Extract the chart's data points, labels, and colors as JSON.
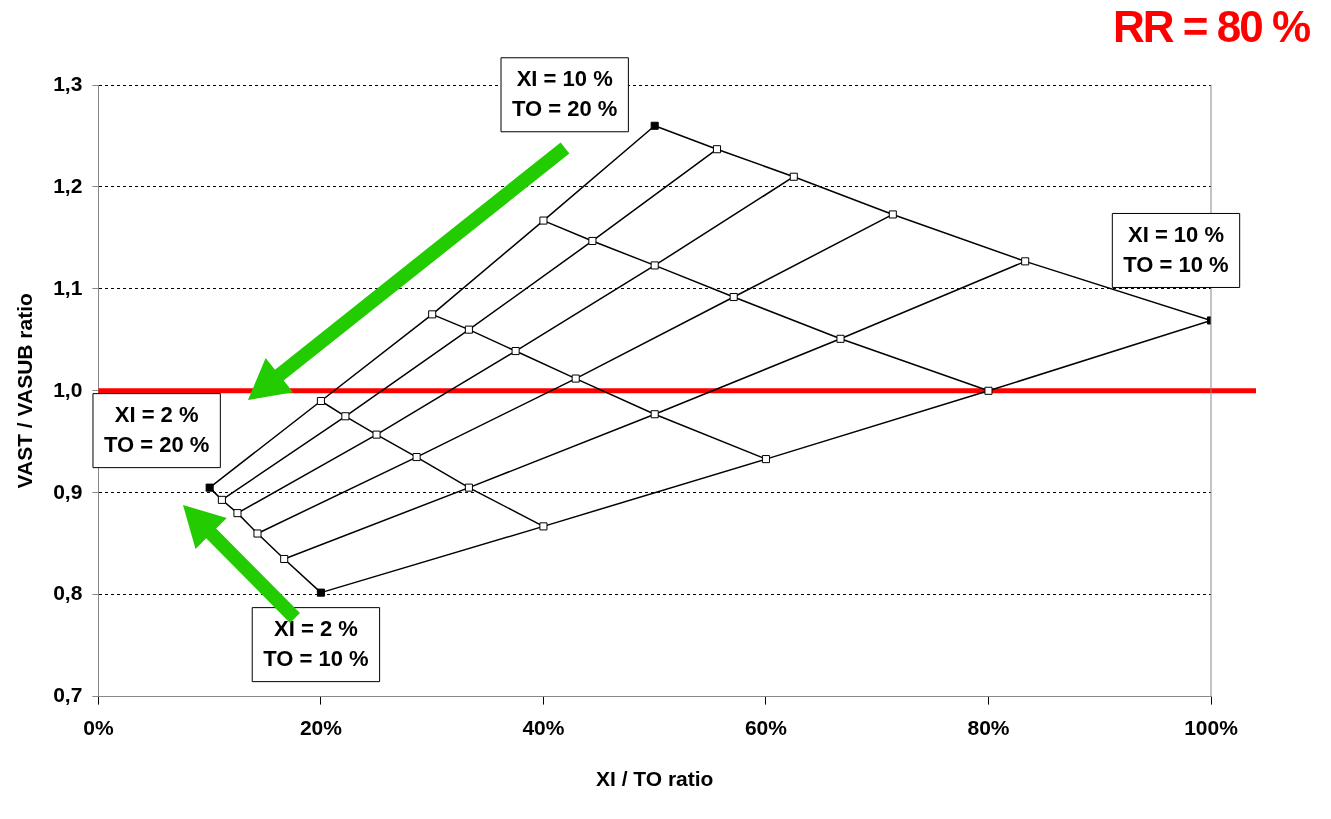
{
  "chart_data": {
    "type": "line",
    "title": "RR = 80 %",
    "xlabel": "XI / TO ratio",
    "ylabel": "VAST / VASUB ratio",
    "xlim": [
      0,
      100
    ],
    "xticks": [
      {
        "value": 0,
        "label": "0%"
      },
      {
        "value": 20,
        "label": "20%"
      },
      {
        "value": 40,
        "label": "40%"
      },
      {
        "value": 60,
        "label": "60%"
      },
      {
        "value": 80,
        "label": "80%"
      },
      {
        "value": 100,
        "label": "100%"
      }
    ],
    "ylim": [
      0.7,
      1.3
    ],
    "yticks": [
      {
        "value": 0.7,
        "label": "0,7"
      },
      {
        "value": 0.8,
        "label": "0,8"
      },
      {
        "value": 0.9,
        "label": "0,9"
      },
      {
        "value": 1.0,
        "label": "1,0"
      },
      {
        "value": 1.1,
        "label": "1,1"
      },
      {
        "value": 1.2,
        "label": "1,2"
      },
      {
        "value": 1.3,
        "label": "1,3"
      }
    ],
    "grid": "y",
    "legend": false,
    "marker": "square",
    "line_style": "solid",
    "series": [
      {
        "color": "#000000",
        "x": [
          10,
          20,
          30,
          40,
          50
        ],
        "values": [
          0.905,
          0.99,
          1.075,
          1.167,
          1.26
        ],
        "colors": [
          "#000000",
          "#ffffff",
          "#ffffff",
          "#ffffff",
          "#000000"
        ]
      },
      {
        "color": "#000000",
        "x": [
          11.1,
          22.2,
          33.3,
          44.4,
          55.6
        ],
        "values": [
          0.893,
          0.975,
          1.06,
          1.147,
          1.237
        ],
        "colors": [
          "#ffffff",
          "#ffffff",
          "#ffffff",
          "#ffffff",
          "#ffffff"
        ]
      },
      {
        "color": "#000000",
        "x": [
          12.5,
          25,
          37.5,
          50,
          62.5
        ],
        "values": [
          0.88,
          0.957,
          1.039,
          1.123,
          1.21
        ],
        "colors": [
          "#ffffff",
          "#ffffff",
          "#ffffff",
          "#ffffff",
          "#ffffff"
        ]
      },
      {
        "color": "#000000",
        "x": [
          14.3,
          28.6,
          42.9,
          57.1,
          71.4
        ],
        "values": [
          0.86,
          0.935,
          1.012,
          1.092,
          1.173
        ],
        "colors": [
          "#ffffff",
          "#ffffff",
          "#ffffff",
          "#ffffff",
          "#ffffff"
        ]
      },
      {
        "color": "#000000",
        "x": [
          16.7,
          33.3,
          50,
          66.7,
          83.3
        ],
        "values": [
          0.835,
          0.905,
          0.977,
          1.051,
          1.127
        ],
        "colors": [
          "#ffffff",
          "#ffffff",
          "#ffffff",
          "#ffffff",
          "#ffffff"
        ]
      },
      {
        "color": "#000000",
        "x": [
          20,
          40,
          60,
          80,
          100
        ],
        "values": [
          0.802,
          0.867,
          0.933,
          1.0,
          1.069
        ],
        "colors": [
          "#000000",
          "#ffffff",
          "#ffffff",
          "#ffffff",
          "#000000"
        ]
      },
      {
        "color": "#000000",
        "marker": "none",
        "x": [
          10,
          11.1,
          12.5,
          14.3,
          16.7,
          20
        ],
        "values": [
          0.905,
          0.893,
          0.88,
          0.86,
          0.835,
          0.802
        ]
      },
      {
        "color": "#000000",
        "marker": "none",
        "x": [
          20,
          22.2,
          25,
          28.6,
          33.3,
          40
        ],
        "values": [
          0.99,
          0.975,
          0.957,
          0.935,
          0.905,
          0.867
        ]
      },
      {
        "color": "#000000",
        "marker": "none",
        "x": [
          30,
          33.3,
          37.5,
          42.9,
          50,
          60
        ],
        "values": [
          1.075,
          1.06,
          1.039,
          1.012,
          0.977,
          0.933
        ]
      },
      {
        "color": "#000000",
        "marker": "none",
        "x": [
          40,
          44.4,
          50,
          57.1,
          66.7,
          80
        ],
        "values": [
          1.167,
          1.147,
          1.123,
          1.092,
          1.051,
          1.0
        ]
      },
      {
        "color": "#000000",
        "marker": "none",
        "x": [
          50,
          55.6,
          62.5,
          71.4,
          83.3,
          100
        ],
        "values": [
          1.26,
          1.237,
          1.21,
          1.173,
          1.127,
          1.069
        ]
      }
    ],
    "ref_lines": [
      {
        "axis": "y",
        "value": 1.0,
        "color": "#ff0000"
      }
    ],
    "annotations": [
      {
        "text": "XI = 10 %\nTO = 20 %",
        "x": 50,
        "y": 1.26
      },
      {
        "text": "XI = 10 %\nTO = 10 %",
        "x": 100,
        "y": 1.069
      },
      {
        "text": "XI = 2 %\nTO = 20 %",
        "x": 10,
        "y": 0.905
      },
      {
        "text": "XI = 2 %\nTO = 10 %",
        "x": 20,
        "y": 0.802
      }
    ]
  }
}
